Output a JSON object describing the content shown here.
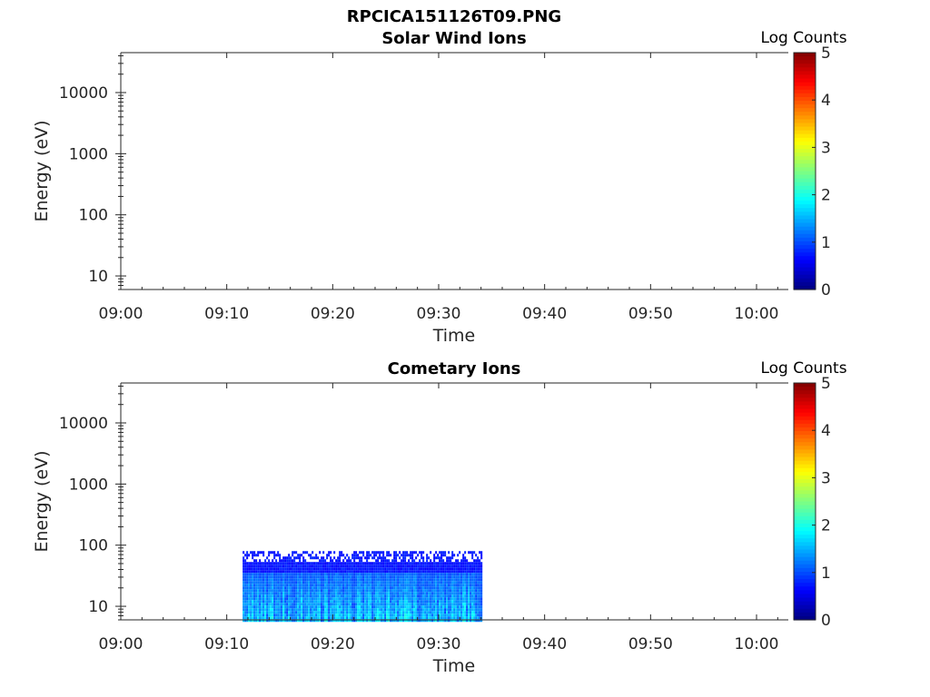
{
  "figure": {
    "title": "RPCICA151126T09.PNG"
  },
  "chart_data": [
    {
      "type": "heatmap",
      "title": "Solar Wind Ions",
      "xlabel": "Time",
      "ylabel": "Energy (eV)",
      "x_ticks": [
        "09:00",
        "09:10",
        "09:20",
        "09:30",
        "09:40",
        "09:50",
        "10:00"
      ],
      "y_ticks": [
        "10",
        "100",
        "1000",
        "10000"
      ],
      "y_scale": "log",
      "x_range": [
        "09:00",
        "10:03"
      ],
      "y_range": [
        6,
        45000
      ],
      "colorbar": {
        "label": "Log Counts",
        "ticks": [
          "0",
          "1",
          "2",
          "3",
          "4",
          "5"
        ],
        "range": [
          0,
          5
        ],
        "colormap": "jet"
      },
      "data_regions": []
    },
    {
      "type": "heatmap",
      "title": "Cometary Ions",
      "xlabel": "Time",
      "ylabel": "Energy (eV)",
      "x_ticks": [
        "09:00",
        "09:10",
        "09:20",
        "09:30",
        "09:40",
        "09:50",
        "10:00"
      ],
      "y_ticks": [
        "10",
        "100",
        "1000",
        "10000"
      ],
      "y_scale": "log",
      "x_range": [
        "09:00",
        "10:03"
      ],
      "y_range": [
        6,
        45000
      ],
      "colorbar": {
        "label": "Log Counts",
        "ticks": [
          "0",
          "1",
          "2",
          "3",
          "4",
          "5"
        ],
        "range": [
          0,
          5
        ],
        "colormap": "jet"
      },
      "data_regions": [
        {
          "t_start": "09:11:30",
          "t_end": "09:34:00",
          "e_min": 6,
          "e_max": 80,
          "log_counts_typical": [
            0.5,
            2.0
          ]
        }
      ]
    }
  ]
}
